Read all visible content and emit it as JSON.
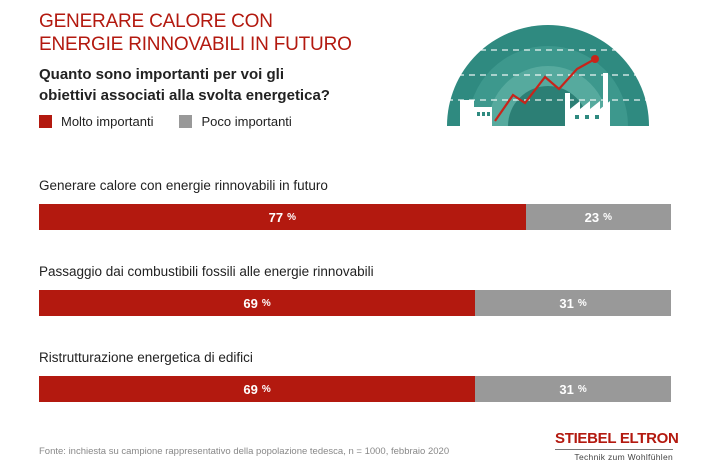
{
  "header": {
    "title_line1": "GENERARE CALORE CON",
    "title_line2": "ENERGIE RINNOVABILI IN FUTURO",
    "question_line1": "Quanto sono importanti per voi gli",
    "question_line2": "obiettivi associati alla svolta energetica?"
  },
  "legend": {
    "items": [
      {
        "label": "Molto importanti",
        "color": "#b3190f"
      },
      {
        "label": "Poco importanti",
        "color": "#999999"
      }
    ]
  },
  "chart_data": {
    "type": "bar",
    "orientation": "horizontal-stacked",
    "categories": [
      "Generare calore con energie rinnovabili in futuro",
      "Passaggio dai combustibili fossili alle energie rinnovabili",
      "Ristrutturazione energetica di edifici"
    ],
    "series": [
      {
        "name": "Molto importanti",
        "values": [
          77,
          69,
          69
        ],
        "color": "#b3190f"
      },
      {
        "name": "Poco importanti",
        "values": [
          23,
          31,
          31
        ],
        "color": "#999999"
      }
    ],
    "value_unit": "%",
    "xlim": [
      0,
      100
    ],
    "grid": false,
    "legend_position": "top-left"
  },
  "footer": {
    "source": "Fonte: inchiesta su campione rappresentativo della popolazione tedesca, n = 1000, febbraio 2020"
  },
  "brand": {
    "name": "STIEBEL ELTRON",
    "tagline": "Technik zum Wohlfühlen"
  },
  "colors": {
    "accent": "#b3190f",
    "grey": "#999999",
    "illustration_teal": "#2f8a80"
  },
  "icons": {
    "illustration": "energy-transition-illustration-icon"
  }
}
